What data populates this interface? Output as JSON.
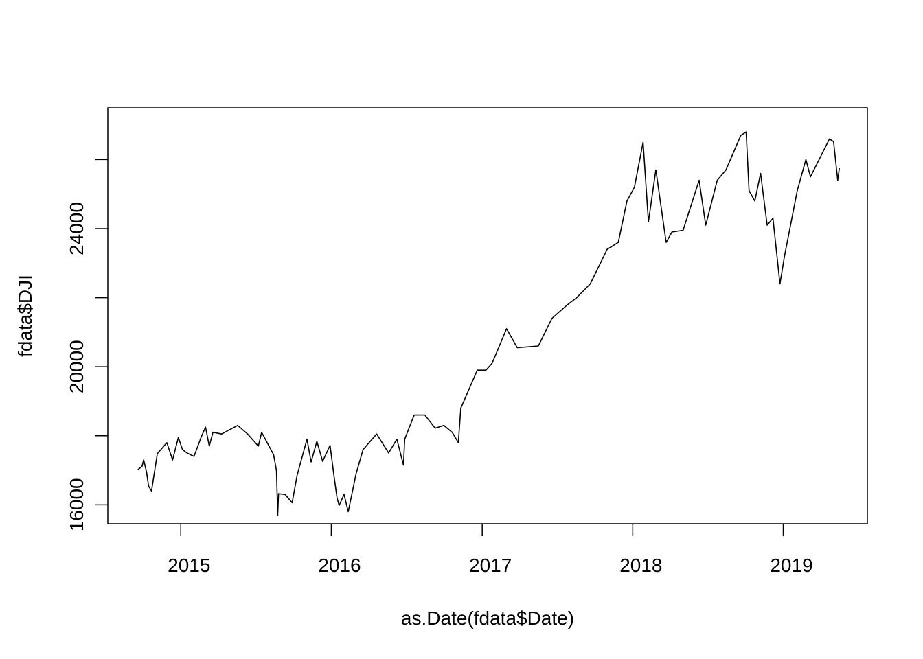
{
  "chart_data": {
    "type": "line",
    "title": "",
    "xlabel": "as.Date(fdata$Date)",
    "ylabel": "fdata$DJI",
    "x_tick_labels": [
      "2015",
      "2016",
      "2017",
      "2018",
      "2019"
    ],
    "y_tick_labels": [
      "16000",
      "20000",
      "24000"
    ],
    "y_ticks": [
      16000,
      18000,
      20000,
      22000,
      24000,
      26000
    ],
    "xlim": [
      "2014-07-08",
      "2019-07-24"
    ],
    "ylim": [
      15450,
      27500
    ],
    "grid": false,
    "legend": "none",
    "line_color": "#000000",
    "series": [
      {
        "x": [
          "2014-09-19",
          "2014-09-29",
          "2014-10-03",
          "2014-10-10",
          "2014-10-15",
          "2014-10-22",
          "2014-11-05",
          "2014-11-28",
          "2014-12-12",
          "2014-12-26",
          "2015-01-05",
          "2015-01-16",
          "2015-02-02",
          "2015-02-20",
          "2015-03-02",
          "2015-03-11",
          "2015-03-20",
          "2015-04-10",
          "2015-05-19",
          "2015-06-12",
          "2015-07-08",
          "2015-07-16",
          "2015-08-14",
          "2015-08-21",
          "2015-08-24",
          "2015-08-26",
          "2015-09-11",
          "2015-09-28",
          "2015-10-10",
          "2015-11-03",
          "2015-11-13",
          "2015-11-27",
          "2015-12-11",
          "2015-12-29",
          "2016-01-08",
          "2016-01-15",
          "2016-01-20",
          "2016-02-01",
          "2016-02-11",
          "2016-03-01",
          "2016-03-18",
          "2016-04-20",
          "2016-05-19",
          "2016-06-08",
          "2016-06-24",
          "2016-06-27",
          "2016-07-20",
          "2016-08-15",
          "2016-09-09",
          "2016-09-30",
          "2016-10-20",
          "2016-11-04",
          "2016-11-10",
          "2016-12-20",
          "2017-01-10",
          "2017-01-25",
          "2017-03-01",
          "2017-03-27",
          "2017-05-17",
          "2017-06-19",
          "2017-07-27",
          "2017-08-18",
          "2017-09-20",
          "2017-10-31",
          "2017-11-27",
          "2017-12-18",
          "2018-01-05",
          "2018-01-26",
          "2018-02-08",
          "2018-02-26",
          "2018-03-23",
          "2018-04-06",
          "2018-05-03",
          "2018-06-11",
          "2018-06-27",
          "2018-07-25",
          "2018-08-15",
          "2018-09-20",
          "2018-10-03",
          "2018-10-10",
          "2018-10-24",
          "2018-11-07",
          "2018-11-23",
          "2018-12-07",
          "2018-12-24",
          "2019-01-04",
          "2019-02-04",
          "2019-02-25",
          "2019-03-08",
          "2019-04-23",
          "2019-05-03",
          "2019-05-13",
          "2019-05-17"
        ],
        "values": [
          17020,
          17110,
          17300,
          16950,
          16540,
          16400,
          17480,
          17800,
          17300,
          17950,
          17600,
          17500,
          17400,
          17980,
          18250,
          17700,
          18100,
          18050,
          18300,
          18050,
          17700,
          18100,
          17450,
          16990,
          15700,
          16320,
          16300,
          16060,
          16850,
          17900,
          17240,
          17840,
          17260,
          17720,
          16800,
          16200,
          15980,
          16300,
          15800,
          16900,
          17600,
          18050,
          17500,
          17900,
          17150,
          17900,
          18600,
          18600,
          18220,
          18300,
          18100,
          17800,
          18800,
          19900,
          19900,
          20100,
          21100,
          20550,
          20600,
          21400,
          21800,
          22000,
          22400,
          23400,
          23600,
          24800,
          25200,
          26500,
          24200,
          25700,
          23600,
          23900,
          23950,
          25400,
          24100,
          25400,
          25700,
          26700,
          26800,
          25100,
          24800,
          25600,
          24100,
          24300,
          22400,
          23200,
          25100,
          26000,
          25500,
          26600,
          26520,
          25400,
          25750
        ]
      }
    ]
  }
}
